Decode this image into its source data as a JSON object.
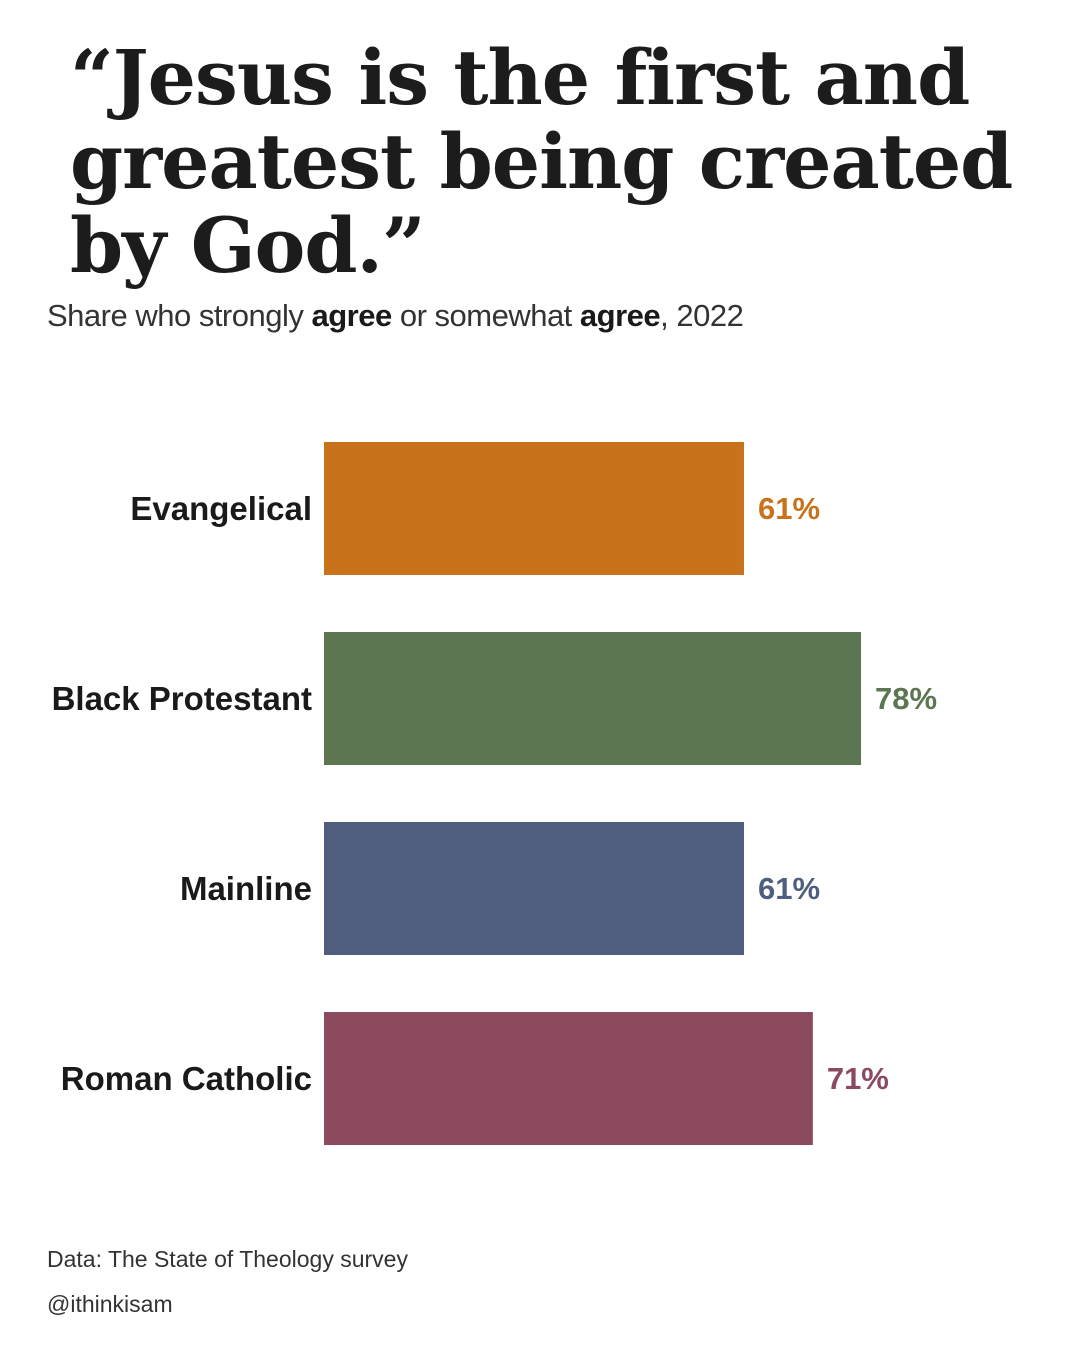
{
  "title": "“Jesus is the first and greatest being created by God.”",
  "subtitle": {
    "part1": "Share who strongly ",
    "bold1": "agree",
    "part2": " or somewhat ",
    "bold2": "agree",
    "part3": ", 2022"
  },
  "footer": {
    "source": "Data: The State of Theology survey",
    "credit": "@ithinkisam"
  },
  "chart_data": {
    "type": "bar",
    "orientation": "horizontal",
    "categories": [
      "Evangelical",
      "Black Protestant",
      "Mainline",
      "Roman Catholic"
    ],
    "values": [
      61,
      78,
      61,
      71
    ],
    "value_labels": [
      "61%",
      "78%",
      "61%",
      "71%"
    ],
    "colors": [
      "#c8731c",
      "#5c7652",
      "#4f5e7f",
      "#8c4a5f"
    ],
    "title": "“Jesus is the first and greatest being created by God.”",
    "xlabel": "",
    "ylabel": "",
    "grid": false,
    "legend": "none"
  }
}
